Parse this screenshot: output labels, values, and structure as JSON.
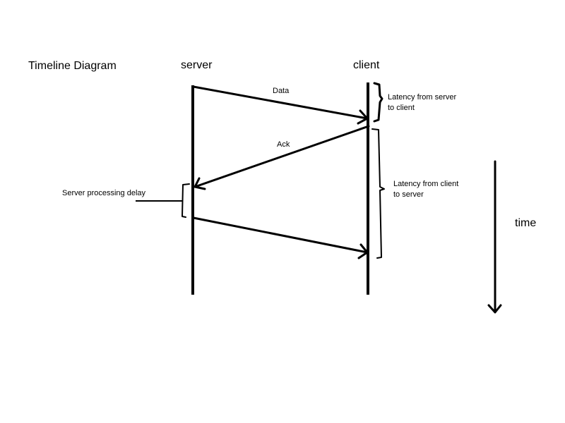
{
  "diagram": {
    "title": "Timeline Diagram",
    "lanes": {
      "server": "server",
      "client": "client"
    },
    "messages": {
      "data": "Data",
      "ack": "Ack",
      "third": ""
    },
    "annotations": {
      "server_to_client": [
        "Latency from server",
        "to client"
      ],
      "client_to_server": [
        "Latency from client",
        "to server"
      ],
      "server_processing": "Server processing delay"
    },
    "axis": {
      "time": "time"
    }
  }
}
